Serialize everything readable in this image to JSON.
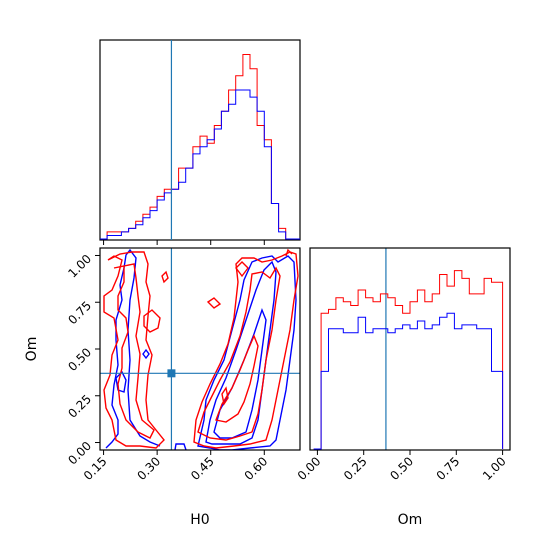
{
  "chart_data": {
    "type": "corner",
    "parameters": [
      "H0",
      "Om"
    ],
    "truth": {
      "H0": 0.34,
      "Om": 0.37
    },
    "colors": {
      "series_a": "#ff0000",
      "series_b": "#0000ff",
      "truth": "#1f77b4"
    },
    "panels": [
      {
        "id": "hist-H0",
        "type": "histogram",
        "parameter": "H0",
        "xlim": [
          0.14,
          0.7
        ],
        "bin_edges": [
          0.14,
          0.16,
          0.18,
          0.2,
          0.22,
          0.24,
          0.26,
          0.28,
          0.3,
          0.32,
          0.34,
          0.36,
          0.38,
          0.4,
          0.42,
          0.44,
          0.46,
          0.48,
          0.5,
          0.52,
          0.54,
          0.56,
          0.58,
          0.6,
          0.62,
          0.64,
          0.66,
          0.68,
          0.7
        ],
        "series": [
          {
            "name": "",
            "color": "#ff0000",
            "values": [
              0,
              2,
              2,
              2,
              3,
              5,
              7,
              9,
              12,
              14,
              14,
              20,
              20,
              26,
              29,
              27,
              32,
              36,
              42,
              46,
              52,
              48,
              32,
              28,
              10,
              3,
              0,
              0
            ]
          },
          {
            "name": "",
            "color": "#0000ff",
            "values": [
              0,
              1,
              1,
              2,
              3,
              4,
              6,
              8,
              11,
              13,
              14,
              16,
              20,
              24,
              26,
              28,
              31,
              36,
              38,
              42,
              42,
              40,
              36,
              26,
              10,
              2,
              0,
              0
            ]
          }
        ],
        "xticks": [
          0.15,
          0.3,
          0.45,
          0.6
        ]
      },
      {
        "id": "contour-H0-Om",
        "type": "contour",
        "x": "H0",
        "y": "Om",
        "xlim": [
          0.14,
          0.7
        ],
        "ylim": [
          -0.04,
          1.04
        ],
        "xticks": [
          0.15,
          0.3,
          0.45,
          0.6
        ],
        "xtick_labels": [
          "0.15",
          "0.30",
          "0.45",
          "0.60"
        ],
        "yticks": [
          0.0,
          0.25,
          0.5,
          0.75,
          1.0
        ],
        "ytick_labels": [
          "0.00",
          "0.25",
          "0.50",
          "0.75",
          "1.00"
        ],
        "xlabel": "H0",
        "ylabel": "Om"
      },
      {
        "id": "hist-Om",
        "type": "histogram",
        "parameter": "Om",
        "xlim": [
          -0.04,
          1.04
        ],
        "bin_edges": [
          -0.02,
          0.02,
          0.06,
          0.1,
          0.14,
          0.18,
          0.22,
          0.26,
          0.3,
          0.34,
          0.38,
          0.42,
          0.46,
          0.5,
          0.54,
          0.58,
          0.62,
          0.66,
          0.7,
          0.74,
          0.78,
          0.82,
          0.86,
          0.9,
          0.94,
          1.0
        ],
        "series": [
          {
            "name": "",
            "color": "#ff0000",
            "values": [
              0,
              70,
              72,
              78,
              76,
              74,
              82,
              78,
              76,
              80,
              78,
              74,
              70,
              76,
              82,
              76,
              80,
              90,
              84,
              92,
              88,
              80,
              80,
              88,
              86
            ]
          },
          {
            "name": "",
            "color": "#0000ff",
            "values": [
              0,
              40,
              62,
              62,
              60,
              60,
              68,
              60,
              62,
              62,
              60,
              62,
              64,
              62,
              66,
              62,
              64,
              68,
              70,
              62,
              64,
              64,
              62,
              62,
              40
            ]
          }
        ],
        "xticks": [
          0.0,
          0.25,
          0.5,
          0.75,
          1.0
        ],
        "xtick_labels": [
          "0.00",
          "0.25",
          "0.50",
          "0.75",
          "1.00"
        ],
        "xlabel": "Om"
      }
    ]
  }
}
